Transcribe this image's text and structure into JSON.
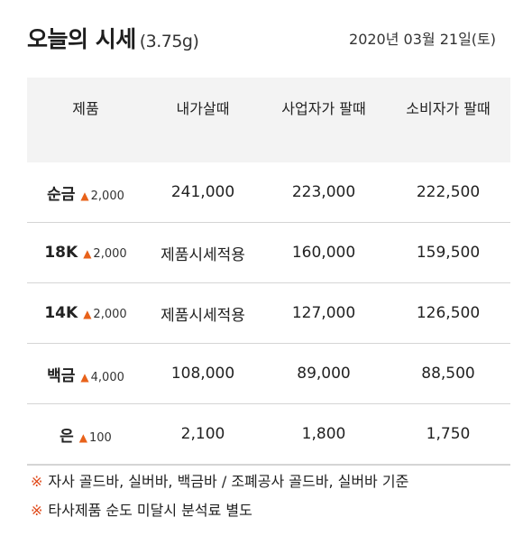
{
  "header": {
    "title": "오늘의 시세",
    "unit": "(3.75g)",
    "date": "2020년 03월 21일(토)"
  },
  "colors": {
    "accent": "#e8621a",
    "header_bg": "#f3f3f3",
    "muted_text": "#8a8a8a"
  },
  "icons": {
    "change_up": "up-triangle-icon",
    "note_mark": "reference-mark-icon"
  },
  "table": {
    "headers": [
      "제품",
      "내가살때",
      "사업자가 팔때",
      "소비자가 팔때"
    ],
    "rows": [
      {
        "product": "순금",
        "change": "2,000",
        "buy": "241,000",
        "biz_sell": "223,000",
        "consumer_sell": "222,500"
      },
      {
        "product": "18K",
        "change": "2,000",
        "buy": "제품시세적용",
        "biz_sell": "160,000",
        "consumer_sell": "159,500"
      },
      {
        "product": "14K",
        "change": "2,000",
        "buy": "제품시세적용",
        "biz_sell": "127,000",
        "consumer_sell": "126,500"
      },
      {
        "product": "백금",
        "change": "4,000",
        "buy": "108,000",
        "biz_sell": "89,000",
        "consumer_sell": "88,500"
      },
      {
        "product": "은",
        "change": "100",
        "buy": "2,100",
        "biz_sell": "1,800",
        "consumer_sell": "1,750"
      }
    ]
  },
  "notes": {
    "mark": "※",
    "items": [
      "자사 골드바, 실버바, 백금바 / 조폐공사 골드바, 실버바 기준",
      "타사제품 순도 미달시 분석료 별도"
    ]
  }
}
